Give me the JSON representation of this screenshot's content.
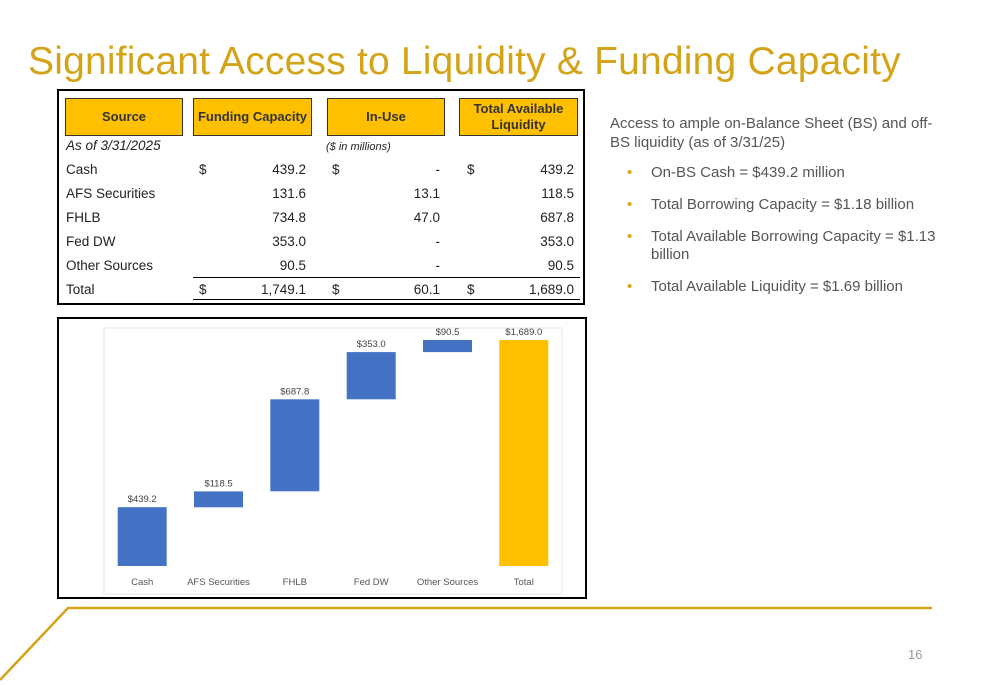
{
  "slide": {
    "title": "Significant Access to Liquidity & Funding Capacity",
    "page_number": "16"
  },
  "table": {
    "headers": {
      "source": "Source",
      "funding_capacity": "Funding Capacity",
      "in_use": "In-Use",
      "total_available": "Total Available Liquidity"
    },
    "as_of": "As of 3/31/2025",
    "units": "($ in millions)",
    "rows": [
      {
        "source": "Cash",
        "cur1": "$",
        "funding": "439.2",
        "cur2": "$",
        "in_use": "-",
        "cur3": "$",
        "available": "439.2"
      },
      {
        "source": "AFS Securities",
        "cur1": "",
        "funding": "131.6",
        "cur2": "",
        "in_use": "13.1",
        "cur3": "",
        "available": "118.5"
      },
      {
        "source": "FHLB",
        "cur1": "",
        "funding": "734.8",
        "cur2": "",
        "in_use": "47.0",
        "cur3": "",
        "available": "687.8"
      },
      {
        "source": "Fed DW",
        "cur1": "",
        "funding": "353.0",
        "cur2": "",
        "in_use": "-",
        "cur3": "",
        "available": "353.0"
      },
      {
        "source": "Other Sources",
        "cur1": "",
        "funding": "90.5",
        "cur2": "",
        "in_use": "-",
        "cur3": "",
        "available": "90.5"
      },
      {
        "source": "Total",
        "cur1": "$",
        "funding": "1,749.1",
        "cur2": "$",
        "in_use": "60.1",
        "cur3": "$",
        "available": "1,689.0"
      }
    ]
  },
  "commentary": {
    "intro": "Access to ample on-Balance Sheet (BS) and off-BS liquidity (as of 3/31/25)",
    "bullets": [
      "On-BS Cash = $439.2 million",
      "Total Borrowing Capacity = $1.18 billion",
      "Total Available Borrowing Capacity = $1.13 billion",
      "Total Available Liquidity = $1.69 billion"
    ]
  },
  "colors": {
    "accent_gold": "#d4a418",
    "header_fill": "#ffc000",
    "bar_blue": "#4472c4",
    "bar_total": "#ffc000"
  },
  "chart_data": {
    "type": "bar",
    "subtype": "waterfall",
    "title": "",
    "xlabel": "",
    "ylabel": "",
    "categories": [
      "Cash",
      "AFS Securities",
      "FHLB",
      "Fed DW",
      "Other Sources",
      "Total"
    ],
    "values": [
      439.2,
      118.5,
      687.8,
      353.0,
      90.5,
      1689.0
    ],
    "data_labels": [
      "$439.2",
      "$118.5",
      "$687.8",
      "$353.0",
      "$90.5",
      "$1,689.0"
    ],
    "is_total": [
      false,
      false,
      false,
      false,
      false,
      true
    ],
    "ylim": [
      0,
      1689.0
    ],
    "grid": false,
    "legend": "none",
    "axis_labels_visible": false
  }
}
